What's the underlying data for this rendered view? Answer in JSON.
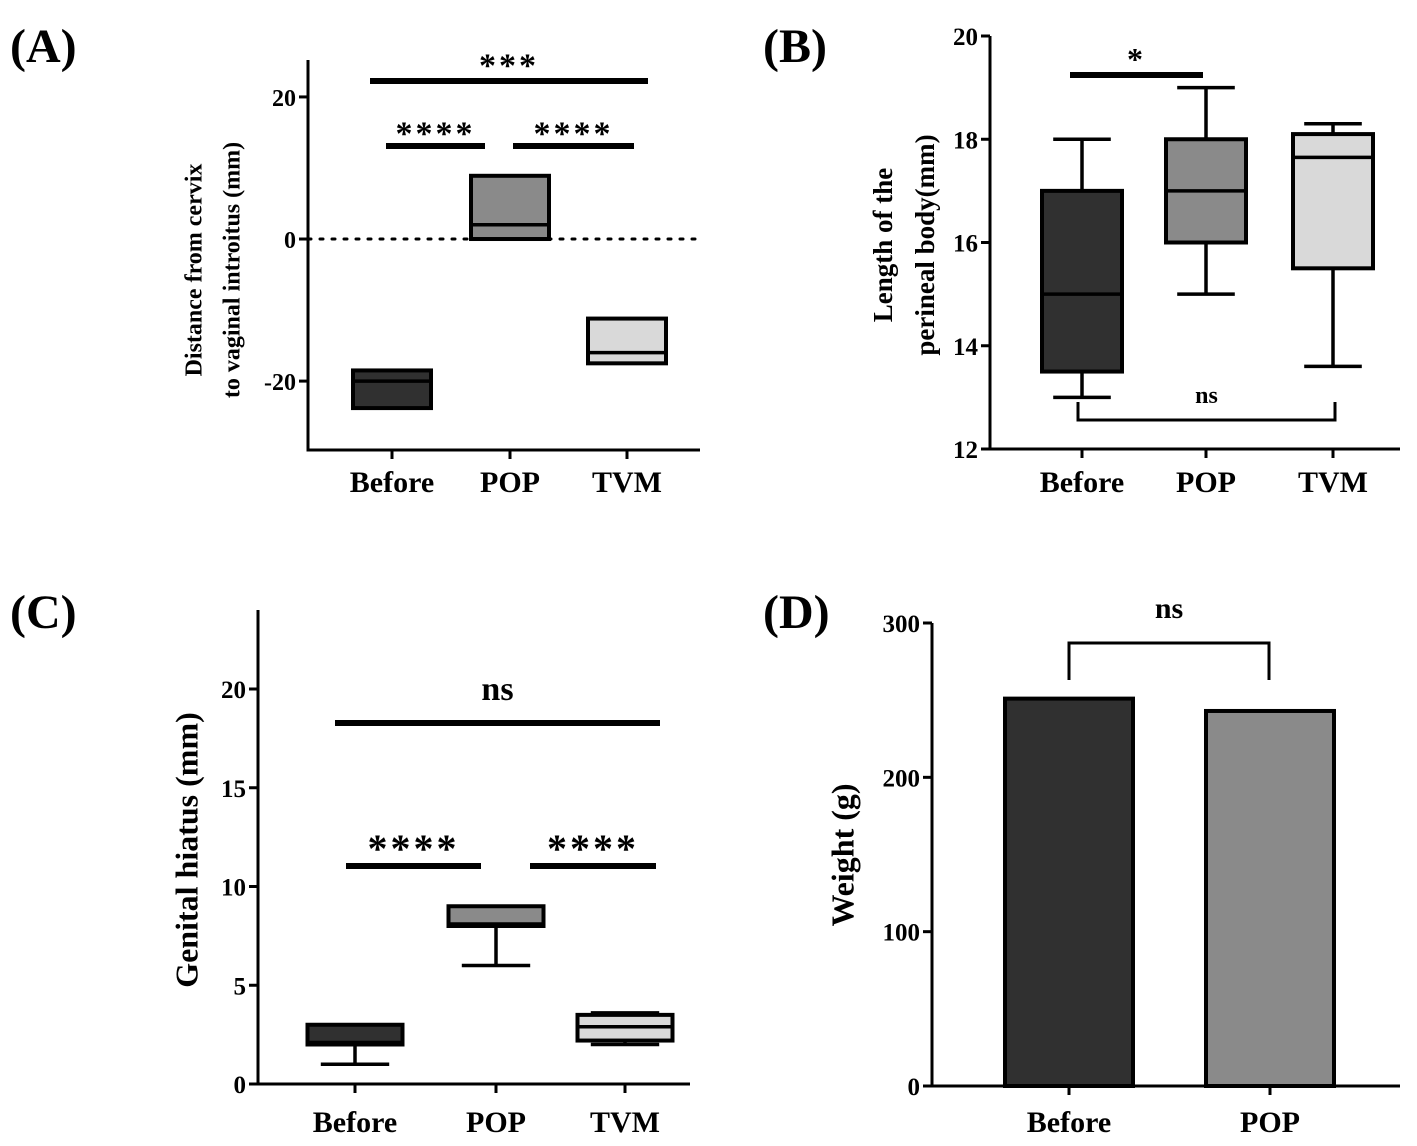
{
  "colors": {
    "Before": "#303030",
    "POP": "#8a8a8a",
    "TVM": "#d9d9d9"
  },
  "chart_data": [
    {
      "panel": "(A)",
      "type": "box",
      "ylabel": [
        "Distance from cervix",
        "to vaginal  introitus (mm)"
      ],
      "categories": [
        "Before",
        "POP",
        "TVM"
      ],
      "ylim": [
        -29.7,
        25.2
      ],
      "yticks": [
        20,
        0,
        -20
      ],
      "ytick_labels": [
        "20",
        "0",
        "-20"
      ],
      "reference_line": 0,
      "boxes": [
        {
          "q1": -23.8,
          "median": -20,
          "q3": -18.5
        },
        {
          "q1": 0,
          "median": 2,
          "q3": 8.9
        },
        {
          "q1": -17.5,
          "median": -16,
          "q3": -11.2
        }
      ],
      "comparisons": [
        {
          "groups": [
            "Before",
            "TVM"
          ],
          "label": "***"
        },
        {
          "groups": [
            "Before",
            "POP"
          ],
          "label": "****"
        },
        {
          "groups": [
            "POP",
            "TVM"
          ],
          "label": "****"
        }
      ]
    },
    {
      "panel": "(B)",
      "type": "box",
      "ylabel": [
        "Length of the",
        "perineal body(mm)"
      ],
      "categories": [
        "Before",
        "POP",
        "TVM"
      ],
      "ylim": [
        12,
        20
      ],
      "yticks": [
        12,
        14,
        16,
        18,
        20
      ],
      "ytick_labels": [
        "12",
        "14",
        "16",
        "18",
        "20"
      ],
      "boxes": [
        {
          "min": 13,
          "q1": 13.5,
          "median": 15,
          "q3": 17,
          "max": 18
        },
        {
          "min": 15,
          "q1": 16,
          "median": 17,
          "q3": 18,
          "max": 19
        },
        {
          "min": 13.6,
          "q1": 15.5,
          "median": 17.65,
          "q3": 18.1,
          "max": 18.3
        }
      ],
      "comparisons": [
        {
          "groups": [
            "Before",
            "POP"
          ],
          "label": "*"
        },
        {
          "groups": [
            "Before",
            "TVM"
          ],
          "label": "ns"
        }
      ]
    },
    {
      "panel": "(C)",
      "type": "box",
      "ylabel": [
        "Genital hiatus (mm)"
      ],
      "categories": [
        "Before",
        "POP",
        "TVM"
      ],
      "ylim": [
        0,
        24
      ],
      "yticks": [
        0,
        5,
        10,
        15,
        20
      ],
      "ytick_labels": [
        "0",
        "5",
        "10",
        "15",
        "20"
      ],
      "boxes": [
        {
          "min": 1,
          "q1": 2,
          "median": 2.1,
          "q3": 3,
          "max": 3
        },
        {
          "min": 6,
          "q1": 8,
          "median": 8.1,
          "q3": 9,
          "max": 9
        },
        {
          "min": 2,
          "q1": 2.2,
          "median": 2.9,
          "q3": 3.5,
          "max": 3.6
        }
      ],
      "comparisons": [
        {
          "groups": [
            "Before",
            "TVM"
          ],
          "label": "ns"
        },
        {
          "groups": [
            "Before",
            "POP"
          ],
          "label": "****"
        },
        {
          "groups": [
            "POP",
            "TVM"
          ],
          "label": "****"
        }
      ]
    },
    {
      "panel": "(D)",
      "type": "bar",
      "ylabel": [
        "Weight (g)"
      ],
      "categories": [
        "Before",
        "POP"
      ],
      "values": [
        251,
        243
      ],
      "ylim": [
        0,
        300
      ],
      "yticks": [
        0,
        100,
        200,
        300
      ],
      "ytick_labels": [
        "0",
        "100",
        "200",
        "300"
      ],
      "comparisons": [
        {
          "groups": [
            "Before",
            "POP"
          ],
          "label": "ns"
        }
      ]
    }
  ]
}
